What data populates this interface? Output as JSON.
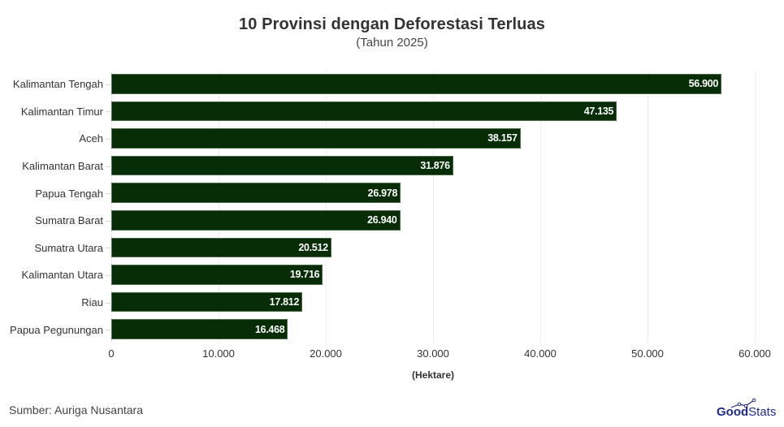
{
  "header": {
    "title": "10 Provinsi dengan Deforestasi Terluas",
    "subtitle": "(Tahun 2025)"
  },
  "footer": {
    "source": "Sumber: Auriga Nusantara",
    "logo_bold": "Good",
    "logo_regular": "Stats",
    "logo_color": "#1d2a8c"
  },
  "axis": {
    "xlabel": "(Hektare)",
    "ticks": [
      "0",
      "10.000",
      "20.000",
      "30.000",
      "40.000",
      "50.000",
      "60.000"
    ]
  },
  "bars": [
    {
      "label": "Kalimantan Tengah",
      "value": 56900,
      "display": "56.900"
    },
    {
      "label": "Kalimantan Timur",
      "value": 47135,
      "display": "47.135"
    },
    {
      "label": "Aceh",
      "value": 38157,
      "display": "38.157"
    },
    {
      "label": "Kalimantan Barat",
      "value": 31876,
      "display": "31.876"
    },
    {
      "label": "Papua Tengah",
      "value": 26978,
      "display": "26.978"
    },
    {
      "label": "Sumatra Barat",
      "value": 26940,
      "display": "26.940"
    },
    {
      "label": "Sumatra Utara",
      "value": 20512,
      "display": "20.512"
    },
    {
      "label": "Kalimantan Utara",
      "value": 19716,
      "display": "19.716"
    },
    {
      "label": "Riau",
      "value": 17812,
      "display": "17.812"
    },
    {
      "label": "Papua Pegunungan",
      "value": 16468,
      "display": "16.468"
    }
  ],
  "colors": {
    "bar": "#062d05",
    "bar_label": "#ffffff"
  },
  "chart_data": {
    "type": "bar",
    "orientation": "horizontal",
    "title": "10 Provinsi dengan Deforestasi Terluas",
    "subtitle": "(Tahun 2025)",
    "categories": [
      "Kalimantan Tengah",
      "Kalimantan Timur",
      "Aceh",
      "Kalimantan Barat",
      "Papua Tengah",
      "Sumatra Barat",
      "Sumatra Utara",
      "Kalimantan Utara",
      "Riau",
      "Papua Pegunungan"
    ],
    "values": [
      56900,
      47135,
      38157,
      31876,
      26978,
      26940,
      20512,
      19716,
      17812,
      16468
    ],
    "xlabel": "(Hektare)",
    "ylabel": "",
    "xlim": [
      0,
      60000
    ],
    "xticks": [
      0,
      10000,
      20000,
      30000,
      40000,
      50000,
      60000
    ],
    "grid": true,
    "legend": "none",
    "data_labels": true,
    "source": "Sumber: Auriga Nusantara"
  }
}
